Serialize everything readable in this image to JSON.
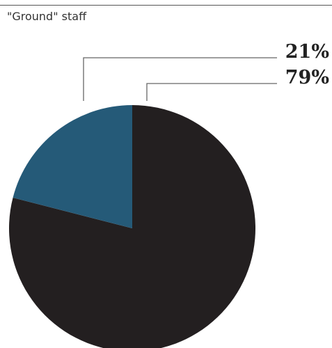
{
  "chart_data": {
    "type": "pie",
    "title": "\"Ground\" staff",
    "slices": [
      {
        "value": 79,
        "label": "79%",
        "color": "#231F20"
      },
      {
        "value": 21,
        "label": "21%",
        "color": "#255A78"
      }
    ]
  }
}
